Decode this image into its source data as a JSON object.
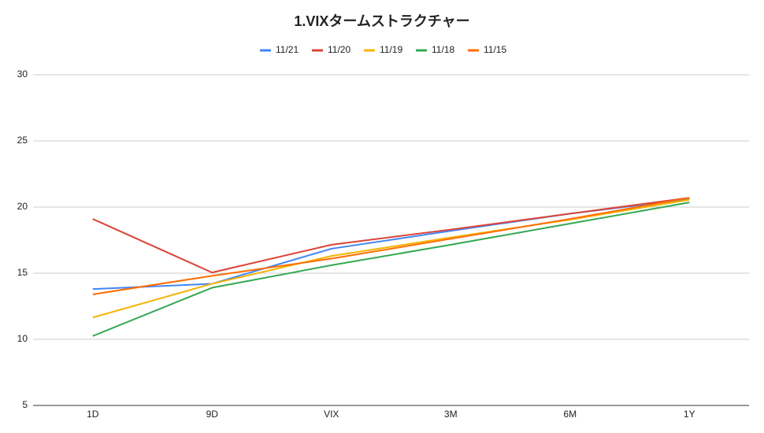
{
  "chart_data": {
    "type": "line",
    "title": "1.VIXタームストラクチャー",
    "categories": [
      "1D",
      "9D",
      "VIX",
      "3M",
      "6M",
      "1Y"
    ],
    "series": [
      {
        "name": "11/21",
        "color": "#4285f4",
        "values": [
          13.8,
          14.2,
          16.85,
          18.2,
          19.5,
          20.6
        ]
      },
      {
        "name": "11/20",
        "color": "#db4437",
        "values": [
          19.1,
          15.05,
          17.15,
          18.3,
          19.5,
          20.7
        ]
      },
      {
        "name": "11/19",
        "color": "#f4b400",
        "values": [
          11.65,
          14.2,
          16.3,
          17.7,
          19.05,
          20.55
        ]
      },
      {
        "name": "11/18",
        "color": "#34a853",
        "values": [
          10.25,
          13.9,
          15.6,
          17.15,
          18.75,
          20.35
        ]
      },
      {
        "name": "11/15",
        "color": "#ff6d01",
        "values": [
          13.4,
          14.8,
          16.1,
          17.6,
          19.1,
          20.7
        ]
      }
    ],
    "ylim": [
      5,
      30
    ],
    "yticks": [
      5,
      10,
      15,
      20,
      25,
      30
    ],
    "grid": true,
    "legend": "top"
  }
}
